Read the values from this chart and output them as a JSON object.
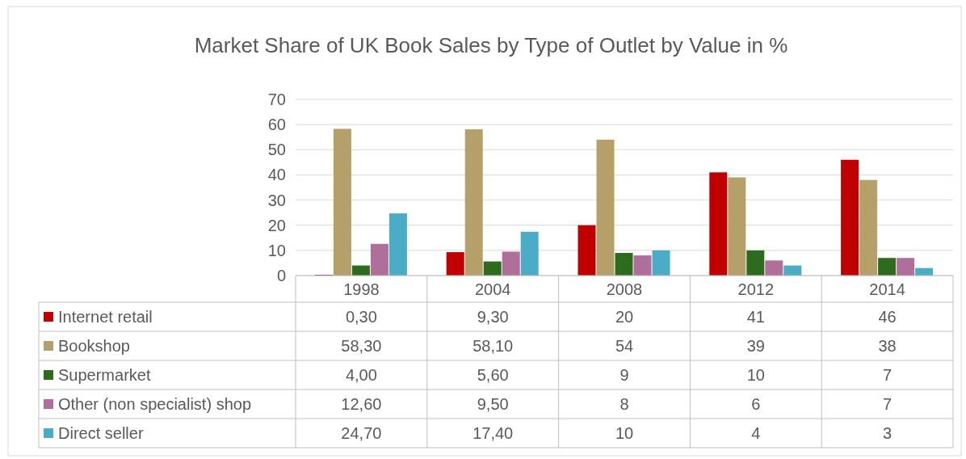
{
  "chart_data": {
    "type": "bar",
    "title": "Market Share of UK Book Sales by Type of Outlet by Value in %",
    "categories": [
      "1998",
      "2004",
      "2008",
      "2012",
      "2014"
    ],
    "ylim": [
      0,
      70
    ],
    "yticks": [
      0,
      10,
      20,
      30,
      40,
      50,
      60,
      70
    ],
    "grid": "y",
    "legend": "bottom",
    "series": [
      {
        "name": "Internet retail",
        "color": "#c00000",
        "values": [
          0.3,
          9.3,
          20,
          41,
          46
        ],
        "value_labels": [
          "0,30",
          "9,30",
          "20",
          "41",
          "46"
        ]
      },
      {
        "name": "Bookshop",
        "color": "#b5a06a",
        "values": [
          58.3,
          58.1,
          54,
          39,
          38
        ],
        "value_labels": [
          "58,30",
          "58,10",
          "54",
          "39",
          "38"
        ]
      },
      {
        "name": "Supermarket",
        "color": "#2e6b1e",
        "values": [
          4,
          5.6,
          9,
          10,
          7
        ],
        "value_labels": [
          "4,00",
          "5,60",
          "9",
          "10",
          "7"
        ]
      },
      {
        "name": "Other (non specialist) shop",
        "color": "#b06f9a",
        "values": [
          12.6,
          9.5,
          8,
          6,
          7
        ],
        "value_labels": [
          "12,60",
          "9,50",
          "8",
          "6",
          "7"
        ]
      },
      {
        "name": "Direct seller",
        "color": "#4bacc6",
        "values": [
          24.7,
          17.4,
          10,
          4,
          3
        ],
        "value_labels": [
          "24,70",
          "17,40",
          "10",
          "4",
          "3"
        ]
      }
    ]
  }
}
